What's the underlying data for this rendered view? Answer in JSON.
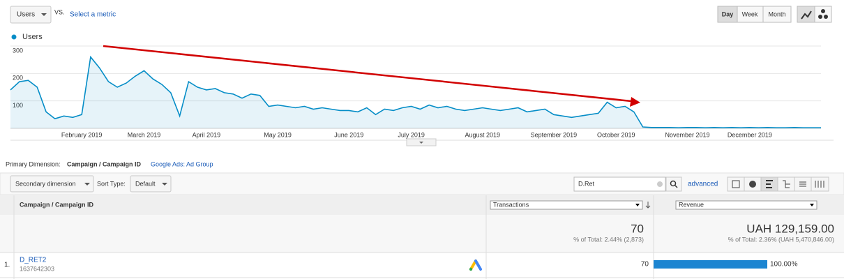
{
  "toolbar": {
    "metric": "Users",
    "vs": "VS.",
    "select_metric": "Select a metric",
    "periods": [
      "Day",
      "Week",
      "Month"
    ]
  },
  "chart_data": {
    "type": "line",
    "categories": [
      null,
      null,
      null,
      null,
      null,
      null,
      null,
      null,
      "February 2019",
      null,
      null,
      null,
      null,
      null,
      null,
      "March 2019",
      null,
      null,
      null,
      null,
      null,
      null,
      "April 2019",
      null,
      null,
      null,
      null,
      null,
      null,
      null,
      "May 2019",
      null,
      null,
      null,
      null,
      null,
      null,
      null,
      "June 2019",
      null,
      null,
      null,
      null,
      null,
      null,
      "July 2019",
      null,
      null,
      null,
      null,
      null,
      null,
      null,
      "August 2019",
      null,
      null,
      null,
      null,
      null,
      null,
      null,
      "September 2019",
      null,
      null,
      null,
      null,
      null,
      null,
      "October 2019",
      null,
      null,
      null,
      null,
      null,
      null,
      null,
      "November 2019",
      null,
      null,
      null,
      null,
      null,
      null,
      "December 2019",
      null,
      null,
      null,
      null,
      null,
      null,
      null,
      null
    ],
    "series": [
      {
        "name": "Users",
        "color": "#058dc7",
        "values": [
          140,
          170,
          175,
          150,
          60,
          35,
          45,
          40,
          50,
          260,
          220,
          170,
          150,
          165,
          190,
          210,
          180,
          160,
          130,
          45,
          170,
          150,
          140,
          145,
          130,
          125,
          110,
          125,
          120,
          80,
          85,
          80,
          75,
          80,
          70,
          75,
          70,
          65,
          65,
          60,
          75,
          50,
          70,
          65,
          75,
          80,
          70,
          85,
          75,
          80,
          70,
          65,
          70,
          75,
          70,
          65,
          70,
          75,
          60,
          65,
          70,
          50,
          45,
          40,
          45,
          50,
          55,
          95,
          75,
          80,
          60,
          5,
          3,
          3,
          3,
          2,
          3,
          3,
          2,
          3,
          2,
          3,
          2,
          3,
          2,
          3,
          2,
          2,
          3,
          2,
          2,
          2
        ]
      }
    ],
    "ylim": [
      0,
      300
    ],
    "yticks": [
      100,
      200,
      300
    ],
    "grid": true,
    "fill_area": true
  },
  "dimension_bar": {
    "label": "Primary Dimension:",
    "primary": "Campaign / Campaign ID",
    "alternative": "Google Ads: Ad Group"
  },
  "controls": {
    "secondary": "Secondary dimension",
    "sort_label": "Sort Type:",
    "sort": "Default",
    "search": "D.Ret",
    "advanced": "advanced"
  },
  "table": {
    "headers": [
      "Campaign / Campaign ID",
      "Transactions",
      "Revenue"
    ],
    "totals": {
      "transactions": "70",
      "transactions_note": "% of Total: 2.44% (2,873)",
      "revenue": "UAH 129,159.00",
      "revenue_note": "% of Total: 2.36% (UAH 5,470,846.00)"
    },
    "rows": [
      {
        "index": "1.",
        "campaign": "D_RET2",
        "id": "1637642303",
        "transactions": "70",
        "revenue_share": 100,
        "revenue_share_label": "100.00%",
        "bar_color": "#1c85d1"
      }
    ]
  }
}
